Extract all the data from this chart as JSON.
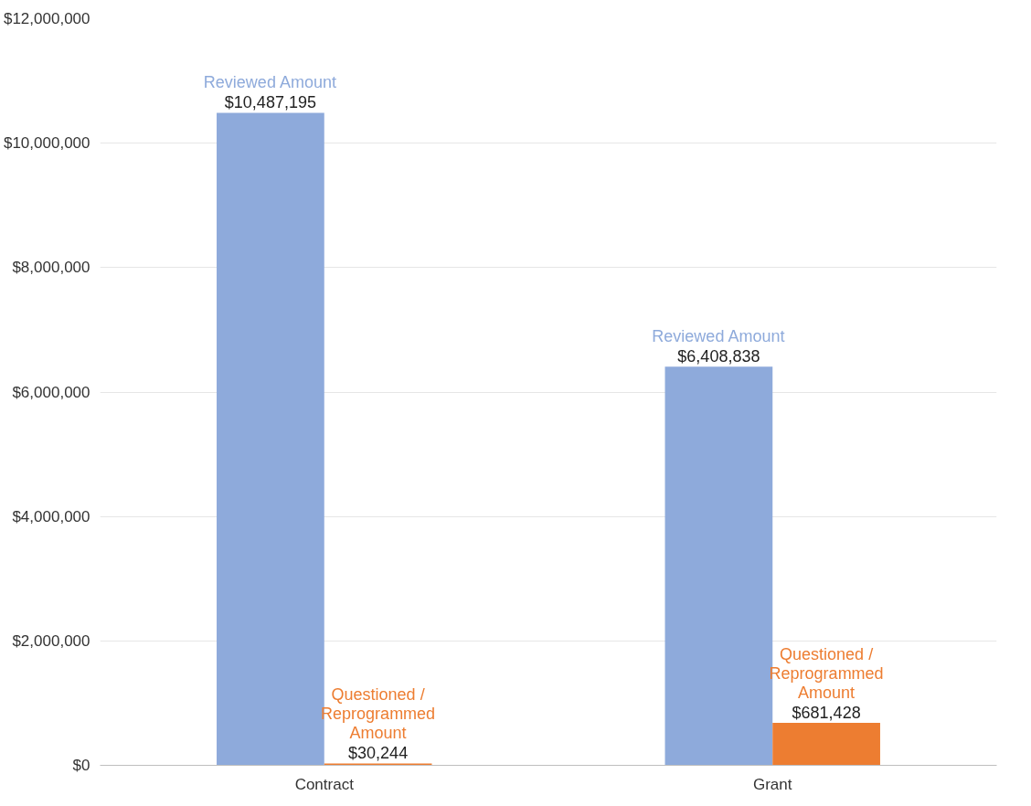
{
  "chart_data": {
    "type": "bar",
    "categories": [
      "Contract",
      "Grant"
    ],
    "series": [
      {
        "name": "Reviewed Amount",
        "color": "#8eaadb",
        "values": [
          10487195,
          6408838
        ],
        "value_labels": [
          "$10,487,195",
          "$6,408,838"
        ]
      },
      {
        "name": "Questioned / Reprogrammed Amount",
        "color": "#ed7d31",
        "values": [
          30244,
          681428
        ],
        "value_labels": [
          "$30,244",
          "$681,428"
        ]
      }
    ],
    "ylim": [
      0,
      12000000
    ],
    "yticks": [
      {
        "value": 0,
        "label": "$0"
      },
      {
        "value": 2000000,
        "label": "$2,000,000"
      },
      {
        "value": 4000000,
        "label": "$4,000,000"
      },
      {
        "value": 6000000,
        "label": "$6,000,000"
      },
      {
        "value": 8000000,
        "label": "$8,000,000"
      },
      {
        "value": 10000000,
        "label": "$10,000,000"
      },
      {
        "value": 12000000,
        "label": "$12,000,000"
      }
    ],
    "grid": "y",
    "legend": false
  }
}
